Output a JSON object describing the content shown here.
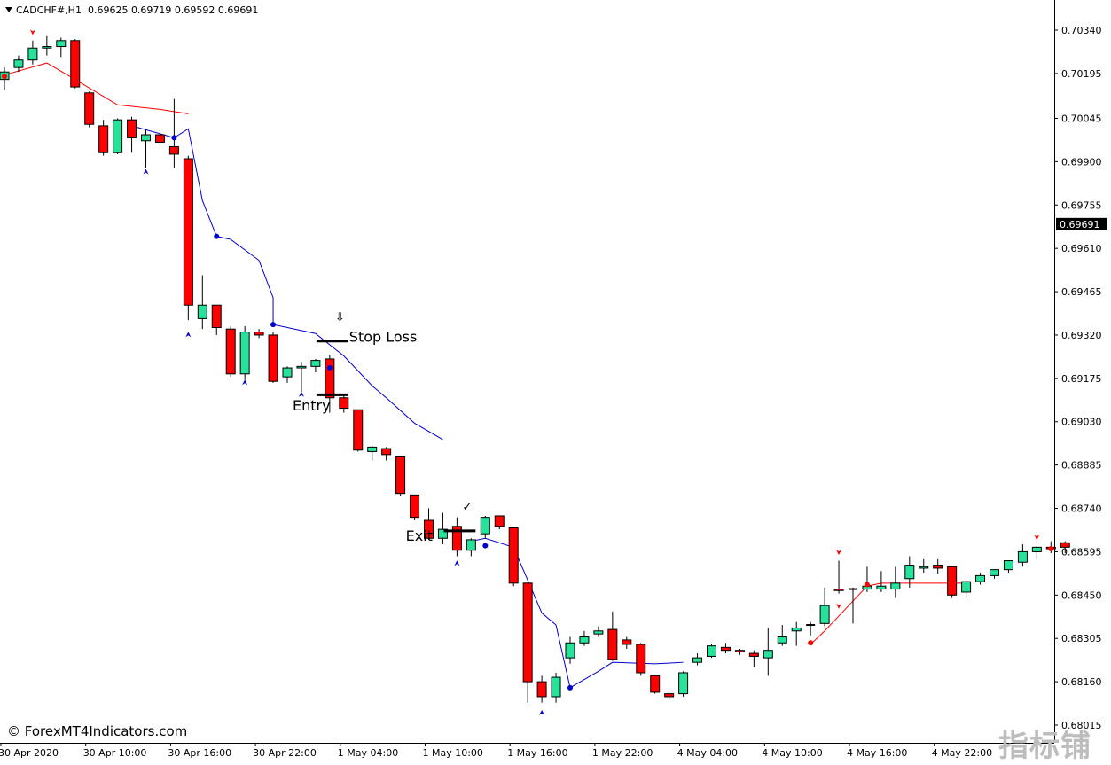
{
  "header": {
    "symbol": "CADCHF#,H1",
    "ohlc": "0.69625 0.69719 0.69592 0.69691"
  },
  "watermark": {
    "text": "© ForexMT4Indicators.com",
    "corner_text": "指标铺"
  },
  "colors": {
    "bull_candle": "#26e29a",
    "bear_candle": "#ff0000",
    "wick": "#000000",
    "line_up": "#ff0000",
    "line_down": "#0000cc",
    "price_tag_bg": "#000000",
    "price_tag_text": "#ffffff"
  },
  "chart_data": {
    "type": "candlestick",
    "symbol": "CADCHF#",
    "timeframe": "H1",
    "ylim": [
      0.6804,
      0.7043
    ],
    "y_ticks": [
      "0.70340",
      "0.70195",
      "0.70045",
      "0.69900",
      "0.69755",
      "0.69610",
      "0.69465",
      "0.69320",
      "0.69175",
      "0.69030",
      "0.68885",
      "0.68740",
      "0.68595",
      "0.68450",
      "0.68305",
      "0.68160",
      "0.68015"
    ],
    "current_price": "0.69691",
    "x_ticks": [
      {
        "label": "30 Apr 2020",
        "index": 0
      },
      {
        "label": "30 Apr 10:00",
        "index": 6
      },
      {
        "label": "30 Apr 16:00",
        "index": 12
      },
      {
        "label": "30 Apr 22:00",
        "index": 18
      },
      {
        "label": "1 May 04:00",
        "index": 24
      },
      {
        "label": "1 May 10:00",
        "index": 30
      },
      {
        "label": "1 May 16:00",
        "index": 36
      },
      {
        "label": "1 May 22:00",
        "index": 42
      },
      {
        "label": "4 May 04:00",
        "index": 48
      },
      {
        "label": "4 May 10:00",
        "index": 54
      },
      {
        "label": "4 May 16:00",
        "index": 60
      },
      {
        "label": "4 May 22:00",
        "index": 66
      }
    ],
    "candles": [
      [
        0.70175,
        0.70215,
        0.7014,
        0.702
      ],
      [
        0.70215,
        0.70255,
        0.702,
        0.7024
      ],
      [
        0.7024,
        0.70305,
        0.70225,
        0.7028
      ],
      [
        0.7028,
        0.7032,
        0.70255,
        0.70285
      ],
      [
        0.70285,
        0.70315,
        0.7025,
        0.70305
      ],
      [
        0.70305,
        0.7031,
        0.70145,
        0.7015
      ],
      [
        0.7013,
        0.70135,
        0.70015,
        0.70025
      ],
      [
        0.7002,
        0.7004,
        0.6992,
        0.6993
      ],
      [
        0.6993,
        0.70045,
        0.69925,
        0.7004
      ],
      [
        0.7004,
        0.7005,
        0.6993,
        0.6998
      ],
      [
        0.6997,
        0.7001,
        0.6988,
        0.6999
      ],
      [
        0.6999,
        0.7001,
        0.6996,
        0.69965
      ],
      [
        0.6995,
        0.7011,
        0.6988,
        0.69925
      ],
      [
        0.6991,
        0.6992,
        0.6937,
        0.6942
      ],
      [
        0.69375,
        0.6952,
        0.6934,
        0.6942
      ],
      [
        0.6942,
        0.6942,
        0.6932,
        0.69345
      ],
      [
        0.6934,
        0.6935,
        0.6918,
        0.6919
      ],
      [
        0.6919,
        0.6935,
        0.6917,
        0.6933
      ],
      [
        0.6933,
        0.6934,
        0.6931,
        0.6932
      ],
      [
        0.6932,
        0.6933,
        0.6916,
        0.69165
      ],
      [
        0.6918,
        0.69215,
        0.6916,
        0.6921
      ],
      [
        0.6921,
        0.6923,
        0.6913,
        0.69215
      ],
      [
        0.69215,
        0.6924,
        0.69195,
        0.69235
      ],
      [
        0.6924,
        0.69255,
        0.6906,
        0.6911
      ],
      [
        0.6911,
        0.6912,
        0.6906,
        0.69075
      ],
      [
        0.6907,
        0.6907,
        0.6893,
        0.68935
      ],
      [
        0.6893,
        0.6895,
        0.689,
        0.68945
      ],
      [
        0.6894,
        0.68945,
        0.689,
        0.6892
      ],
      [
        0.68915,
        0.68915,
        0.6878,
        0.6879
      ],
      [
        0.68785,
        0.68785,
        0.687,
        0.6871
      ],
      [
        0.687,
        0.6874,
        0.68635,
        0.6864
      ],
      [
        0.6864,
        0.68725,
        0.6862,
        0.6867
      ],
      [
        0.6868,
        0.6871,
        0.6858,
        0.686
      ],
      [
        0.686,
        0.6864,
        0.6858,
        0.68635
      ],
      [
        0.68655,
        0.68715,
        0.6864,
        0.6871
      ],
      [
        0.68715,
        0.68715,
        0.6867,
        0.6868
      ],
      [
        0.68675,
        0.68675,
        0.6848,
        0.6849
      ],
      [
        0.6849,
        0.68495,
        0.6809,
        0.6816
      ],
      [
        0.6816,
        0.6818,
        0.6809,
        0.6811
      ],
      [
        0.6811,
        0.6819,
        0.6809,
        0.68175
      ],
      [
        0.6824,
        0.6831,
        0.6822,
        0.6829
      ],
      [
        0.6829,
        0.6833,
        0.6828,
        0.6831
      ],
      [
        0.6832,
        0.68345,
        0.6831,
        0.6833
      ],
      [
        0.68335,
        0.68395,
        0.6823,
        0.68235
      ],
      [
        0.683,
        0.6831,
        0.6827,
        0.68285
      ],
      [
        0.68285,
        0.6829,
        0.6818,
        0.6819
      ],
      [
        0.6818,
        0.6818,
        0.6812,
        0.68125
      ],
      [
        0.6812,
        0.68125,
        0.68105,
        0.6811
      ],
      [
        0.6812,
        0.68195,
        0.6811,
        0.6819
      ],
      [
        0.68225,
        0.68255,
        0.68215,
        0.6824
      ],
      [
        0.68245,
        0.68285,
        0.6824,
        0.6828
      ],
      [
        0.68275,
        0.6829,
        0.68255,
        0.68265
      ],
      [
        0.68265,
        0.6827,
        0.6825,
        0.6826
      ],
      [
        0.68255,
        0.68265,
        0.6821,
        0.68245
      ],
      [
        0.6824,
        0.6834,
        0.6818,
        0.68265
      ],
      [
        0.6829,
        0.6835,
        0.6828,
        0.6831
      ],
      [
        0.6833,
        0.6836,
        0.6828,
        0.6834
      ],
      [
        0.6835,
        0.6836,
        0.68315,
        0.6835
      ],
      [
        0.68355,
        0.68475,
        0.68345,
        0.68415
      ],
      [
        0.6847,
        0.68565,
        0.68455,
        0.68465
      ],
      [
        0.6847,
        0.68475,
        0.68355,
        0.6847
      ],
      [
        0.6847,
        0.68545,
        0.6846,
        0.6848
      ],
      [
        0.6847,
        0.6853,
        0.6846,
        0.6848
      ],
      [
        0.6847,
        0.68545,
        0.6844,
        0.6849
      ],
      [
        0.68505,
        0.6858,
        0.68475,
        0.6855
      ],
      [
        0.6854,
        0.6857,
        0.68525,
        0.68545
      ],
      [
        0.6855,
        0.6857,
        0.6852,
        0.6854
      ],
      [
        0.68545,
        0.68545,
        0.6844,
        0.6845
      ],
      [
        0.6846,
        0.685,
        0.6844,
        0.68495
      ],
      [
        0.68495,
        0.68525,
        0.68485,
        0.68515
      ],
      [
        0.68515,
        0.68525,
        0.68505,
        0.68535
      ],
      [
        0.68535,
        0.6855,
        0.68525,
        0.68565
      ],
      [
        0.6856,
        0.6862,
        0.68545,
        0.68595
      ],
      [
        0.68595,
        0.68615,
        0.6857,
        0.6861
      ],
      [
        0.6861,
        0.6863,
        0.6859,
        0.68605
      ],
      [
        0.68625,
        0.6863,
        0.6859,
        0.6861
      ]
    ],
    "line_red_segment_1": [
      [
        0,
        0.7019
      ],
      [
        3,
        0.7023
      ],
      [
        5,
        0.70175
      ],
      [
        8,
        0.7009
      ],
      [
        11,
        0.70075
      ],
      [
        13,
        0.7006
      ]
    ],
    "line_blue_segment_1": [
      [
        9,
        0.7002
      ],
      [
        12,
        0.6998
      ],
      [
        13,
        0.7001
      ],
      [
        14,
        0.6977
      ],
      [
        15,
        0.6965
      ],
      [
        16,
        0.6964
      ],
      [
        18,
        0.6957
      ],
      [
        19,
        0.69445
      ],
      [
        19,
        0.69355
      ],
      [
        22,
        0.69325
      ],
      [
        24,
        0.6925
      ],
      [
        26,
        0.6915
      ],
      [
        27,
        0.6911
      ],
      [
        29,
        0.69025
      ],
      [
        31,
        0.6897
      ]
    ],
    "line_blue_segment_2": [
      [
        33,
        0.6863
      ],
      [
        34,
        0.6864
      ],
      [
        36,
        0.6861
      ],
      [
        38,
        0.6839
      ],
      [
        39,
        0.6835
      ],
      [
        40,
        0.6814
      ],
      [
        42,
        0.68195
      ],
      [
        43,
        0.68225
      ],
      [
        46,
        0.6822
      ],
      [
        48,
        0.68225
      ]
    ],
    "line_red_segment_2": [
      [
        57,
        0.68285
      ],
      [
        58,
        0.6833
      ],
      [
        59,
        0.6838
      ],
      [
        61,
        0.6848
      ],
      [
        62,
        0.6849
      ],
      [
        64,
        0.6849
      ],
      [
        67,
        0.6849
      ],
      [
        68,
        0.6849
      ]
    ],
    "blue_dots": [
      [
        12,
        0.6998
      ],
      [
        15,
        0.6965
      ],
      [
        19,
        0.69355
      ],
      [
        23,
        0.6921
      ],
      [
        34,
        0.68615
      ],
      [
        40,
        0.6814
      ]
    ],
    "red_dots": [
      [
        0,
        0.70185
      ],
      [
        57,
        0.6829
      ],
      [
        61,
        0.68485
      ],
      [
        74,
        0.68605
      ]
    ],
    "down_arrows": [
      [
        2,
        0.7033
      ],
      [
        59,
        0.6841
      ],
      [
        59,
        0.6859
      ],
      [
        73,
        0.6864
      ]
    ],
    "up_arrows": [
      [
        10,
        0.6987
      ],
      [
        13,
        0.69325
      ],
      [
        17,
        0.69165
      ],
      [
        21,
        0.69125
      ],
      [
        32,
        0.6856
      ],
      [
        38,
        0.6806
      ]
    ],
    "annotations": [
      {
        "text": "Stop Loss",
        "index": 24,
        "price": 0.69315
      },
      {
        "text": "Entry",
        "index": 20,
        "price": 0.69085
      },
      {
        "text": "Exit",
        "index": 28,
        "price": 0.6865
      },
      {
        "text": "⇩",
        "index": 23,
        "price": 0.69385
      },
      {
        "text": "✓",
        "index": 32,
        "price": 0.6875
      }
    ],
    "levels": [
      {
        "name": "stop-loss-level",
        "from": 22,
        "to": 24,
        "price": 0.693
      },
      {
        "name": "entry-level",
        "from": 22,
        "to": 24,
        "price": 0.6912
      },
      {
        "name": "exit-level",
        "from": 31,
        "to": 33,
        "price": 0.68665
      }
    ]
  }
}
